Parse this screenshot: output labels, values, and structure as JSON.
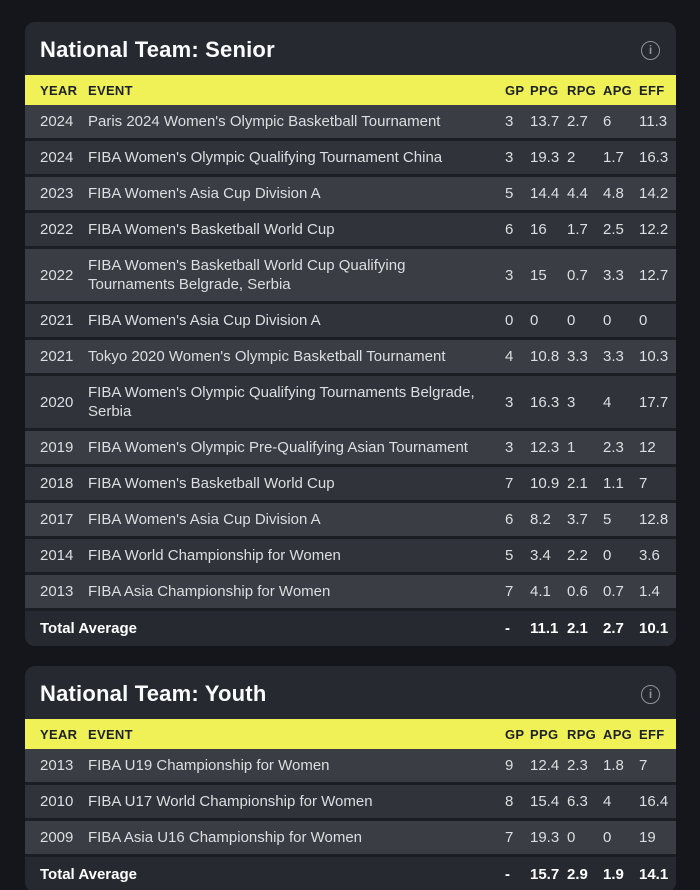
{
  "colors": {
    "page_bg": "#14161b",
    "card_bg": "#26292f",
    "accent_yellow": "#f0f156",
    "row_light": "#3a3d44",
    "row_dark": "#30333a"
  },
  "tables": [
    {
      "title": "National Team: Senior",
      "info_icon": "info-icon",
      "columns": {
        "year": "YEAR",
        "event": "EVENT",
        "gp": "GP",
        "ppg": "PPG",
        "rpg": "RPG",
        "apg": "APG",
        "eff": "EFF"
      },
      "rows": [
        {
          "year": "2024",
          "event": "Paris 2024 Women's Olympic Basketball Tournament",
          "gp": "3",
          "ppg": "13.7",
          "rpg": "2.7",
          "apg": "6",
          "eff": "11.3"
        },
        {
          "year": "2024",
          "event": "FIBA Women's Olympic Qualifying Tournament China",
          "gp": "3",
          "ppg": "19.3",
          "rpg": "2",
          "apg": "1.7",
          "eff": "16.3"
        },
        {
          "year": "2023",
          "event": "FIBA Women's Asia Cup Division A",
          "gp": "5",
          "ppg": "14.4",
          "rpg": "4.4",
          "apg": "4.8",
          "eff": "14.2"
        },
        {
          "year": "2022",
          "event": "FIBA Women's Basketball World Cup",
          "gp": "6",
          "ppg": "16",
          "rpg": "1.7",
          "apg": "2.5",
          "eff": "12.2"
        },
        {
          "year": "2022",
          "event": "FIBA Women's Basketball World Cup Qualifying Tournaments Belgrade, Serbia",
          "gp": "3",
          "ppg": "15",
          "rpg": "0.7",
          "apg": "3.3",
          "eff": "12.7"
        },
        {
          "year": "2021",
          "event": "FIBA Women's Asia Cup Division A",
          "gp": "0",
          "ppg": "0",
          "rpg": "0",
          "apg": "0",
          "eff": "0"
        },
        {
          "year": "2021",
          "event": "Tokyo 2020 Women's Olympic Basketball Tournament",
          "gp": "4",
          "ppg": "10.8",
          "rpg": "3.3",
          "apg": "3.3",
          "eff": "10.3"
        },
        {
          "year": "2020",
          "event": "FIBA Women's Olympic Qualifying Tournaments Belgrade, Serbia",
          "gp": "3",
          "ppg": "16.3",
          "rpg": "3",
          "apg": "4",
          "eff": "17.7"
        },
        {
          "year": "2019",
          "event": "FIBA Women's Olympic Pre-Qualifying Asian Tournament",
          "gp": "3",
          "ppg": "12.3",
          "rpg": "1",
          "apg": "2.3",
          "eff": "12"
        },
        {
          "year": "2018",
          "event": "FIBA Women's Basketball World Cup",
          "gp": "7",
          "ppg": "10.9",
          "rpg": "2.1",
          "apg": "1.1",
          "eff": "7"
        },
        {
          "year": "2017",
          "event": "FIBA Women's Asia Cup Division A",
          "gp": "6",
          "ppg": "8.2",
          "rpg": "3.7",
          "apg": "5",
          "eff": "12.8"
        },
        {
          "year": "2014",
          "event": "FIBA World Championship for Women",
          "gp": "5",
          "ppg": "3.4",
          "rpg": "2.2",
          "apg": "0",
          "eff": "3.6"
        },
        {
          "year": "2013",
          "event": "FIBA Asia Championship for Women",
          "gp": "7",
          "ppg": "4.1",
          "rpg": "0.6",
          "apg": "0.7",
          "eff": "1.4"
        }
      ],
      "total": {
        "label": "Total Average",
        "gp": "-",
        "ppg": "11.1",
        "rpg": "2.1",
        "apg": "2.7",
        "eff": "10.1"
      }
    },
    {
      "title": "National Team: Youth",
      "info_icon": "info-icon",
      "columns": {
        "year": "YEAR",
        "event": "EVENT",
        "gp": "GP",
        "ppg": "PPG",
        "rpg": "RPG",
        "apg": "APG",
        "eff": "EFF"
      },
      "rows": [
        {
          "year": "2013",
          "event": "FIBA U19 Championship for Women",
          "gp": "9",
          "ppg": "12.4",
          "rpg": "2.3",
          "apg": "1.8",
          "eff": "7"
        },
        {
          "year": "2010",
          "event": "FIBA U17 World Championship for Women",
          "gp": "8",
          "ppg": "15.4",
          "rpg": "6.3",
          "apg": "4",
          "eff": "16.4"
        },
        {
          "year": "2009",
          "event": "FIBA Asia U16 Championship for Women",
          "gp": "7",
          "ppg": "19.3",
          "rpg": "0",
          "apg": "0",
          "eff": "19"
        }
      ],
      "total": {
        "label": "Total Average",
        "gp": "-",
        "ppg": "15.7",
        "rpg": "2.9",
        "apg": "1.9",
        "eff": "14.1"
      }
    }
  ]
}
